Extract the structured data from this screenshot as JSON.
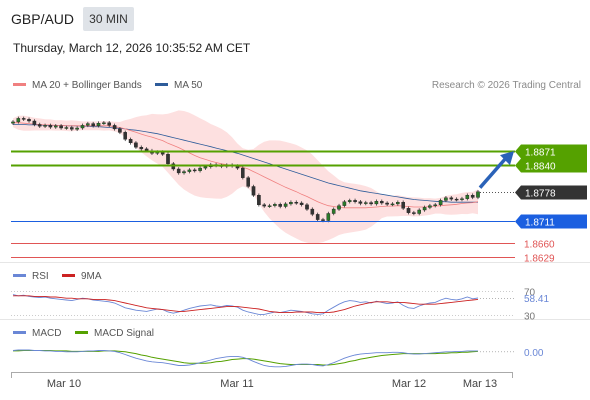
{
  "header": {
    "symbol": "GBP/AUD",
    "interval": "30 MIN",
    "datetime": "Thursday, March 12, 2026 10:35:52 AM CET"
  },
  "legend": {
    "ma20": "MA 20 + Bollinger Bands",
    "ma50": "MA 50",
    "credit": "Research © 2026 Trading Central",
    "rsi": "RSI",
    "rsi_ma": "9MA",
    "macd": "MACD",
    "macd_signal": "MACD Signal"
  },
  "colors": {
    "candle": "#2a7a2a",
    "bollinger_fill": "#fde0e0",
    "ma20": "#f08080",
    "ma50": "#2e5c9a",
    "resistance": "#55a100",
    "support": "#1b5fe0",
    "target_red": "#e05555",
    "last_price": "#333333",
    "rsi": "#6a87d6",
    "rsi_ma": "#cc2222",
    "macd": "#6a87d6",
    "macd_signal": "#55a100",
    "arrow": "#2a62b8"
  },
  "chart_data": [
    {
      "type": "candlestick",
      "title": "GBP/AUD",
      "x_ticks": [
        "Mar 10",
        "Mar 11",
        "Mar 12",
        "Mar 13"
      ],
      "ylim": [
        1.861,
        1.8995
      ],
      "price_levels": [
        {
          "label": "1.8871",
          "value": 1.8871,
          "kind": "resistance"
        },
        {
          "label": "1.8840",
          "value": 1.884,
          "kind": "resistance"
        },
        {
          "label": "1.8778",
          "value": 1.8778,
          "kind": "last"
        },
        {
          "label": "1.8711",
          "value": 1.8711,
          "kind": "support"
        },
        {
          "label": "1.8660",
          "value": 1.866,
          "kind": "target"
        },
        {
          "label": "1.8629",
          "value": 1.8629,
          "kind": "target"
        }
      ],
      "close": [
        1.8938,
        1.8946,
        1.8944,
        1.894,
        1.8932,
        1.8928,
        1.893,
        1.8926,
        1.8929,
        1.8924,
        1.8925,
        1.8921,
        1.8924,
        1.893,
        1.8934,
        1.8929,
        1.8935,
        1.8936,
        1.893,
        1.8922,
        1.8914,
        1.8898,
        1.889,
        1.888,
        1.8876,
        1.8872,
        1.8866,
        1.8869,
        1.8864,
        1.8842,
        1.883,
        1.8821,
        1.8824,
        1.8828,
        1.8826,
        1.8832,
        1.8835,
        1.884,
        1.8838,
        1.8836,
        1.8839,
        1.8837,
        1.8832,
        1.881,
        1.879,
        1.877,
        1.8748,
        1.8745,
        1.8746,
        1.8749,
        1.8744,
        1.875,
        1.8754,
        1.8752,
        1.8748,
        1.8738,
        1.8726,
        1.8714,
        1.8712,
        1.8728,
        1.8738,
        1.8746,
        1.8755,
        1.8758,
        1.8755,
        1.8751,
        1.8753,
        1.875,
        1.8756,
        1.8752,
        1.8749,
        1.875,
        1.8754,
        1.874,
        1.873,
        1.8728,
        1.8736,
        1.8742,
        1.8746,
        1.8748,
        1.8758,
        1.8764,
        1.8761,
        1.876,
        1.8762,
        1.877,
        1.8765,
        1.8778
      ],
      "ma20": [
        1.8936,
        1.8936,
        1.8935,
        1.8934,
        1.8933,
        1.8932,
        1.8931,
        1.8931,
        1.893,
        1.893,
        1.8929,
        1.8929,
        1.8929,
        1.8929,
        1.8929,
        1.8929,
        1.8929,
        1.8929,
        1.8929,
        1.8927,
        1.8925,
        1.8922,
        1.8918,
        1.8914,
        1.891,
        1.8906,
        1.8903,
        1.8899,
        1.8895,
        1.8889,
        1.8884,
        1.8879,
        1.8873,
        1.8867,
        1.8861,
        1.8856,
        1.8852,
        1.8848,
        1.8845,
        1.8842,
        1.884,
        1.8838,
        1.8836,
        1.8834,
        1.883,
        1.8824,
        1.8818,
        1.8812,
        1.8806,
        1.88,
        1.8794,
        1.8788,
        1.8783,
        1.8778,
        1.8772,
        1.8767,
        1.8761,
        1.8755,
        1.875,
        1.8746,
        1.8744,
        1.8742,
        1.8741,
        1.8741,
        1.8741,
        1.8741,
        1.8741,
        1.8742,
        1.8743,
        1.8744,
        1.8745,
        1.8745,
        1.8746,
        1.8745,
        1.8744,
        1.8743,
        1.8743,
        1.8743,
        1.8744,
        1.8745,
        1.8746,
        1.8747,
        1.8748,
        1.8749,
        1.8751,
        1.8752,
        1.8753,
        1.8755
      ],
      "ma50": [
        1.8932,
        1.8932,
        1.8932,
        1.8931,
        1.8931,
        1.8931,
        1.893,
        1.893,
        1.893,
        1.893,
        1.8929,
        1.8929,
        1.8929,
        1.8928,
        1.8928,
        1.8927,
        1.8927,
        1.8926,
        1.8925,
        1.8924,
        1.8923,
        1.8922,
        1.892,
        1.8919,
        1.8917,
        1.8915,
        1.8913,
        1.8911,
        1.8908,
        1.8905,
        1.8902,
        1.8899,
        1.8896,
        1.8893,
        1.889,
        1.8887,
        1.8884,
        1.8881,
        1.8878,
        1.8875,
        1.8872,
        1.8869,
        1.8866,
        1.8862,
        1.8858,
        1.8854,
        1.885,
        1.8846,
        1.8842,
        1.8838,
        1.8834,
        1.883,
        1.8826,
        1.8822,
        1.8818,
        1.8814,
        1.881,
        1.8806,
        1.8802,
        1.8798,
        1.8795,
        1.8792,
        1.8789,
        1.8786,
        1.8783,
        1.878,
        1.8778,
        1.8776,
        1.8774,
        1.8772,
        1.877,
        1.8768,
        1.8766,
        1.8764,
        1.8762,
        1.876,
        1.8759,
        1.8758,
        1.8757,
        1.8756,
        1.8755,
        1.8755,
        1.8754,
        1.8754,
        1.8754,
        1.8754,
        1.8754,
        1.8754
      ]
    },
    {
      "type": "line",
      "title": "RSI",
      "ticks": [
        "70",
        "30"
      ],
      "ylim": [
        25,
        75
      ],
      "last_value": "58.41",
      "rsi": [
        64,
        62,
        63,
        61,
        60,
        59,
        60,
        58,
        57,
        56,
        55,
        54,
        56,
        58,
        57,
        55,
        54,
        53,
        52,
        50,
        46,
        42,
        40,
        38,
        37,
        36,
        38,
        40,
        39,
        35,
        33,
        35,
        38,
        41,
        43,
        45,
        46,
        47,
        45,
        44,
        46,
        45,
        43,
        38,
        35,
        33,
        31,
        31,
        33,
        35,
        34,
        36,
        38,
        37,
        36,
        34,
        32,
        31,
        32,
        38,
        43,
        48,
        52,
        54,
        53,
        51,
        52,
        50,
        53,
        51,
        49,
        50,
        52,
        46,
        42,
        41,
        45,
        48,
        50,
        51,
        55,
        58,
        56,
        55,
        57,
        60,
        57,
        58.41
      ],
      "rsi_ma": [
        62,
        62,
        62,
        62,
        61,
        61,
        61,
        60,
        60,
        59,
        58,
        58,
        57,
        57,
        57,
        56,
        56,
        56,
        55,
        54,
        52,
        50,
        48,
        46,
        44,
        42,
        41,
        40,
        39,
        38,
        37,
        36,
        36,
        37,
        38,
        39,
        40,
        41,
        42,
        43,
        44,
        44,
        44,
        43,
        42,
        41,
        40,
        38,
        36,
        35,
        34,
        34,
        34,
        35,
        35,
        35,
        35,
        34,
        34,
        34,
        35,
        37,
        39,
        42,
        45,
        47,
        49,
        51,
        52,
        52,
        52,
        51,
        51,
        51,
        50,
        49,
        48,
        48,
        48,
        48,
        49,
        50,
        51,
        52,
        53,
        54,
        55,
        56
      ]
    },
    {
      "type": "line",
      "title": "MACD",
      "ylim": [
        -0.004,
        0.0026
      ],
      "last_value": "0.00",
      "macd": [
        0.0003,
        0.0004,
        0.0004,
        0.0004,
        0.0003,
        0.0003,
        0.0002,
        0.0002,
        0.0001,
        0.0001,
        0.0,
        0.0,
        0.0,
        0.0001,
        0.0002,
        0.0002,
        0.0003,
        0.0003,
        0.0002,
        0.0001,
        -0.0002,
        -0.0006,
        -0.001,
        -0.0014,
        -0.0017,
        -0.002,
        -0.0022,
        -0.0023,
        -0.0024,
        -0.0026,
        -0.0028,
        -0.003,
        -0.003,
        -0.0029,
        -0.0027,
        -0.0024,
        -0.0021,
        -0.0018,
        -0.0015,
        -0.0013,
        -0.0011,
        -0.001,
        -0.001,
        -0.0012,
        -0.0016,
        -0.0021,
        -0.0026,
        -0.003,
        -0.0032,
        -0.0033,
        -0.0033,
        -0.0032,
        -0.003,
        -0.0028,
        -0.0027,
        -0.0027,
        -0.0028,
        -0.003,
        -0.0031,
        -0.0028,
        -0.0024,
        -0.0019,
        -0.0014,
        -0.001,
        -0.0007,
        -0.0005,
        -0.0004,
        -0.0003,
        -0.0002,
        -0.0002,
        -0.0002,
        -0.0001,
        -0.0001,
        -0.0002,
        -0.0004,
        -0.0005,
        -0.0005,
        -0.0004,
        -0.0003,
        -0.0002,
        -0.0001,
        0.0,
        0.0,
        0.0001,
        0.0001,
        0.0002,
        0.0002,
        0.0002
      ],
      "signal": [
        0.0002,
        0.0002,
        0.0003,
        0.0003,
        0.0003,
        0.0003,
        0.0003,
        0.0003,
        0.0002,
        0.0002,
        0.0002,
        0.0001,
        0.0001,
        0.0001,
        0.0001,
        0.0001,
        0.0001,
        0.0002,
        0.0002,
        0.0002,
        0.0001,
        0.0,
        -0.0002,
        -0.0004,
        -0.0007,
        -0.0009,
        -0.0012,
        -0.0014,
        -0.0016,
        -0.0018,
        -0.002,
        -0.0022,
        -0.0024,
        -0.0025,
        -0.0025,
        -0.0025,
        -0.0025,
        -0.0024,
        -0.0022,
        -0.0021,
        -0.0019,
        -0.0017,
        -0.0016,
        -0.0015,
        -0.0015,
        -0.0016,
        -0.0018,
        -0.002,
        -0.0022,
        -0.0024,
        -0.0026,
        -0.0027,
        -0.0028,
        -0.0028,
        -0.0028,
        -0.0028,
        -0.0028,
        -0.0028,
        -0.0029,
        -0.0029,
        -0.0028,
        -0.0026,
        -0.0024,
        -0.0021,
        -0.0019,
        -0.0016,
        -0.0014,
        -0.0012,
        -0.001,
        -0.0008,
        -0.0007,
        -0.0006,
        -0.0005,
        -0.0004,
        -0.0004,
        -0.0004,
        -0.0004,
        -0.0004,
        -0.0004,
        -0.0004,
        -0.0003,
        -0.0003,
        -0.0002,
        -0.0002,
        -0.0001,
        -0.0001,
        0.0,
        0.0001
      ]
    }
  ]
}
